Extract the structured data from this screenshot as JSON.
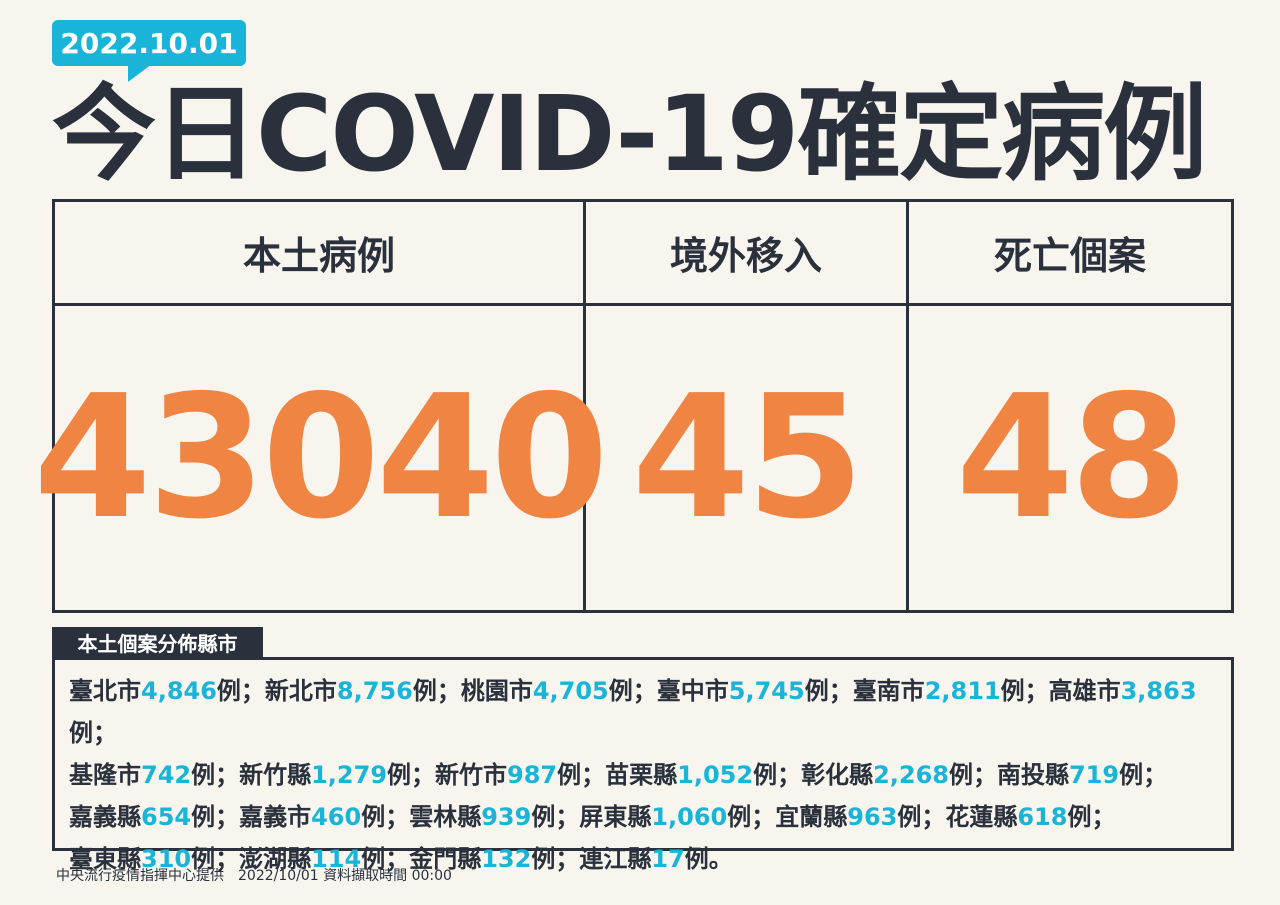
{
  "date_badge": "2022.10.01",
  "title": "今日COVID-19確定病例",
  "colors": {
    "background": "#f7f5ee",
    "dark": "#2a313c",
    "orange": "#f08442",
    "blue": "#1ab4d8"
  },
  "summary": [
    {
      "label": "本土病例",
      "value": "43040"
    },
    {
      "label": "境外移入",
      "value": "45"
    },
    {
      "label": "死亡個案",
      "value": "48"
    }
  ],
  "distribution": {
    "label": "本土個案分佈縣市",
    "unit": "例",
    "separator": "；",
    "terminator": "。",
    "items": [
      {
        "name": "臺北市",
        "count": "4,846"
      },
      {
        "name": "新北市",
        "count": "8,756"
      },
      {
        "name": "桃園市",
        "count": "4,705"
      },
      {
        "name": "臺中市",
        "count": "5,745"
      },
      {
        "name": "臺南市",
        "count": "2,811"
      },
      {
        "name": "高雄市",
        "count": "3,863"
      },
      {
        "name": "基隆市",
        "count": "742"
      },
      {
        "name": "新竹縣",
        "count": "1,279"
      },
      {
        "name": "新竹市",
        "count": "987"
      },
      {
        "name": "苗栗縣",
        "count": "1,052"
      },
      {
        "name": "彰化縣",
        "count": "2,268"
      },
      {
        "name": "南投縣",
        "count": "719"
      },
      {
        "name": "嘉義縣",
        "count": "654"
      },
      {
        "name": "嘉義市",
        "count": "460"
      },
      {
        "name": "雲林縣",
        "count": "939"
      },
      {
        "name": "屏東縣",
        "count": "1,060"
      },
      {
        "name": "宜蘭縣",
        "count": "963"
      },
      {
        "name": "花蓮縣",
        "count": "618"
      },
      {
        "name": "臺東縣",
        "count": "310"
      },
      {
        "name": "澎湖縣",
        "count": "114"
      },
      {
        "name": "金門縣",
        "count": "132"
      },
      {
        "name": "連江縣",
        "count": "17"
      }
    ]
  },
  "footer": "中央流行疫情指揮中心提供　2022/10/01 資料擷取時間 00:00"
}
